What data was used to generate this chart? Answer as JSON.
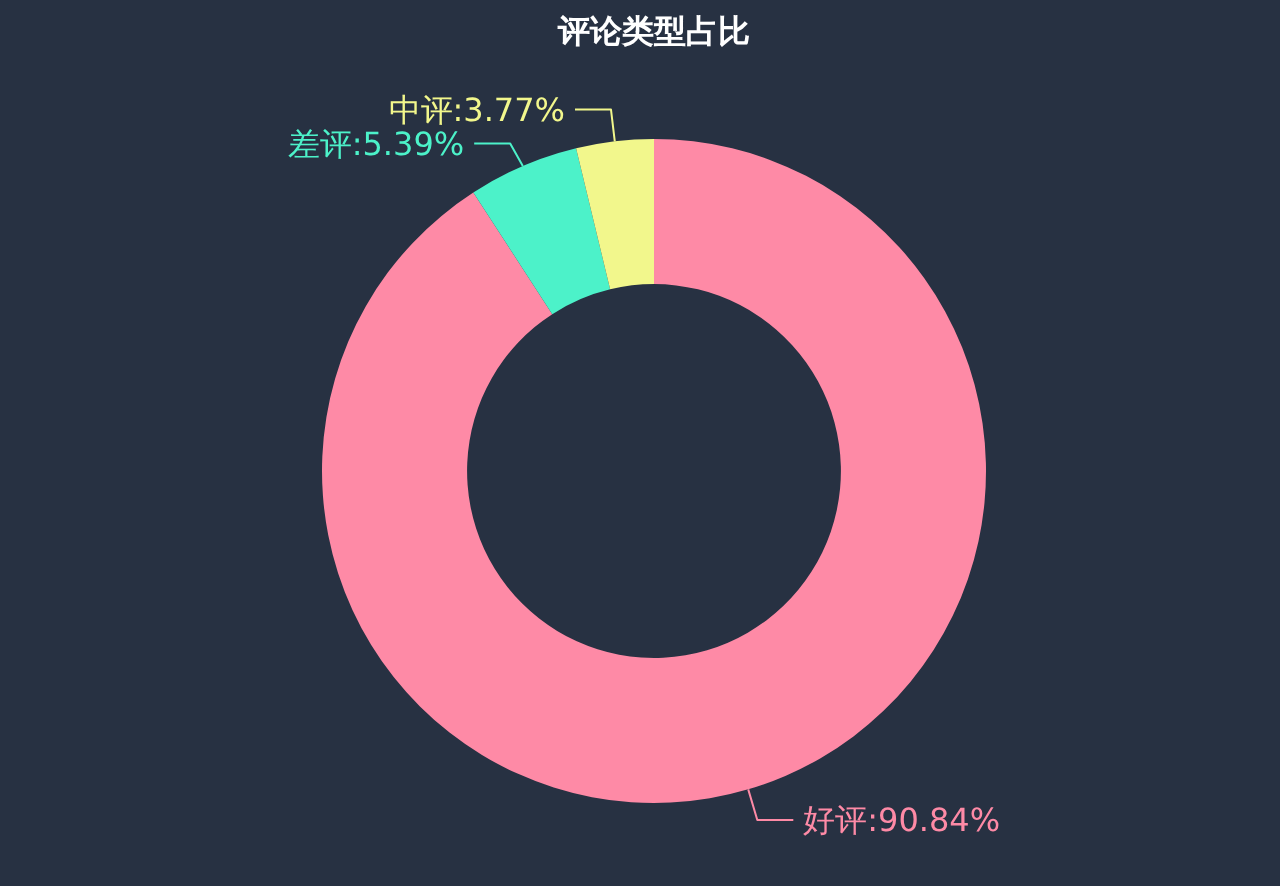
{
  "chart_data": {
    "type": "donut",
    "title": "评论类型占比",
    "categories": [
      "好评",
      "差评",
      "中评"
    ],
    "values": [
      90.84,
      5.39,
      3.77
    ],
    "colors": [
      "#fe8aa6",
      "#4cf2c9",
      "#f2f78c"
    ],
    "value_labels": [
      "90.84%",
      "5.39%",
      "3.77%"
    ]
  }
}
